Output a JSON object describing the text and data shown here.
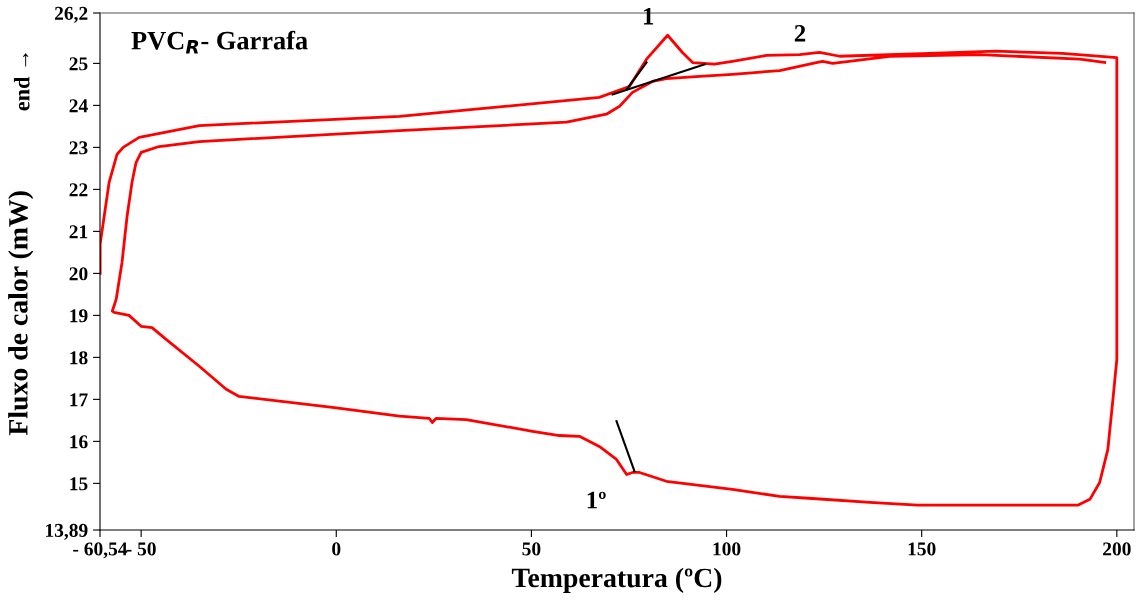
{
  "chart_data": {
    "type": "line",
    "title": "PVC$_{R}$- Garrafa",
    "xlabel": "Temperatura (ºC)",
    "ylabel": "Fluxo de calor (mW)",
    "xlim": [
      -60.54,
      204.4
    ],
    "ylim": [
      13.89,
      26.2
    ],
    "xticks": [
      {
        "value": -60.54,
        "label": "- 60,54"
      },
      {
        "value": -50,
        "label": "- 50"
      },
      0,
      50,
      100,
      150,
      200
    ],
    "yticks": [
      {
        "value": 13.89,
        "label": "13,89"
      },
      15,
      16,
      17,
      18,
      19,
      20,
      21,
      22,
      23,
      24,
      25,
      {
        "value": 26.2,
        "label": "26,2"
      }
    ],
    "grid": false,
    "legend": false,
    "annotations": [
      "end →",
      {
        "text": "1",
        "x": 84.9,
        "y": 25.67
      },
      {
        "text": "2",
        "x": 123.8,
        "y": 25.26
      },
      {
        "text": "1º",
        "x": 74.4,
        "y": 15.21
      }
    ],
    "series": [
      {
        "color": "#ff0000",
        "x": [
          -60.5,
          -60.5,
          -58.2,
          -56.2,
          -54.6,
          -50.5,
          -35.1,
          16.2,
          67.4,
          75.1,
          79.5,
          84.9,
          88.7,
          91.3,
          96.9,
          101.5,
          110.3,
          118.7,
          123.8,
          129,
          152,
          169,
          186,
          200,
          200,
          200,
          200,
          199,
          197.7,
          195.6,
          193.1,
          190,
          182.8,
          162.8,
          149,
          136.7,
          122,
          113.6,
          101.5,
          84.6,
          77.7,
          75.9,
          74.4,
          71.8,
          67.4,
          62.3,
          57.2,
          50.3,
          33.3,
          25.6,
          24.6,
          23.8,
          16.2,
          -1,
          -24.9,
          -28.2,
          -35.1,
          -43.6,
          -47.2,
          -50,
          -53.1,
          -56.9,
          -57.4,
          -56.4,
          -54.9,
          -53.6,
          -52.3,
          -51.3,
          -50,
          -45.4,
          -35.1,
          16.2,
          59,
          69.2,
          72.6,
          75.9,
          81,
          84.6,
          93.1,
          101.5,
          113.6,
          123,
          124.6,
          127.2,
          141.8,
          165,
          190.5,
          196.9
        ],
        "values": [
          20.0,
          20.7,
          22.17,
          22.83,
          23.0,
          23.24,
          23.52,
          23.74,
          24.19,
          24.45,
          25.1,
          25.67,
          25.26,
          25.02,
          24.98,
          25.05,
          25.19,
          25.21,
          25.26,
          25.17,
          25.24,
          25.29,
          25.24,
          25.14,
          24.57,
          19.38,
          17.95,
          17.0,
          15.81,
          15.02,
          14.62,
          14.48,
          14.48,
          14.48,
          14.48,
          14.55,
          14.64,
          14.69,
          14.86,
          15.05,
          15.26,
          15.26,
          15.21,
          15.57,
          15.88,
          16.12,
          16.14,
          16.24,
          16.52,
          16.55,
          16.45,
          16.55,
          16.6,
          16.81,
          17.07,
          17.24,
          17.79,
          18.43,
          18.71,
          18.74,
          19.0,
          19.07,
          19.1,
          19.38,
          20.26,
          21.36,
          22.19,
          22.64,
          22.88,
          23.02,
          23.14,
          23.4,
          23.6,
          23.79,
          23.98,
          24.31,
          24.57,
          24.64,
          24.69,
          24.74,
          24.83,
          25.02,
          25.05,
          25.0,
          25.17,
          25.21,
          25.1,
          25.02
        ]
      },
      {
        "color": "#000000",
        "x": [
          70.8,
          94.4
        ],
        "values": [
          24.26,
          24.98
        ]
      },
      {
        "color": "#000000",
        "x": [
          74.4,
          79.5
        ],
        "values": [
          24.38,
          25.02
        ]
      },
      {
        "color": "#000000",
        "x": [
          71.8,
          76.4
        ],
        "values": [
          16.48,
          15.29
        ]
      }
    ]
  }
}
